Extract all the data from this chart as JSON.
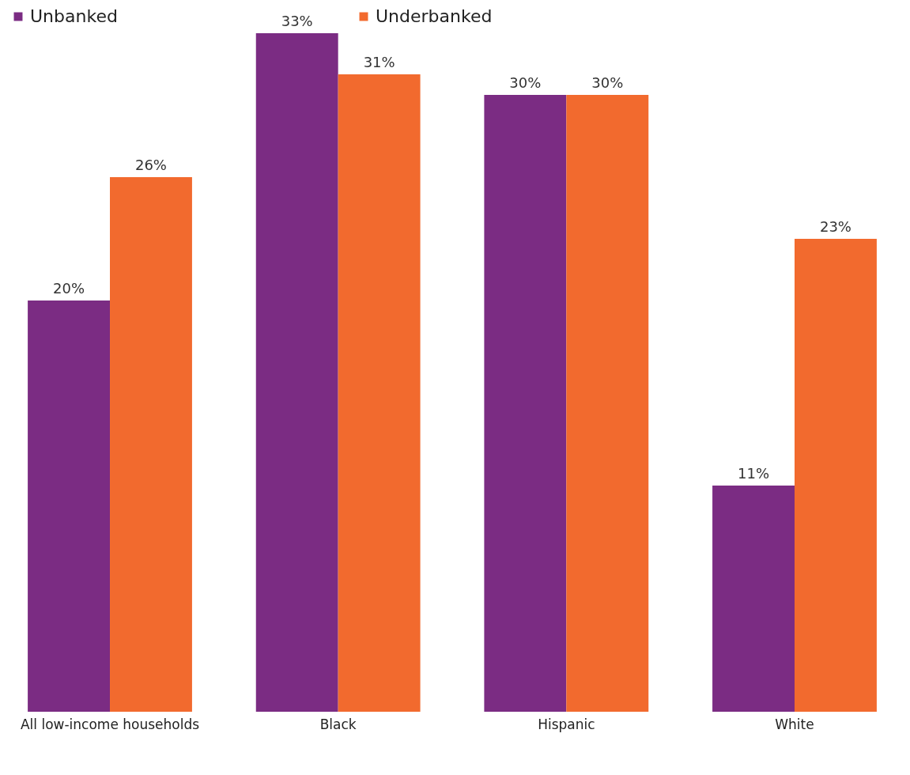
{
  "chart_data": {
    "type": "bar",
    "categories": [
      "All low-income households",
      "Black",
      "Hispanic",
      "White"
    ],
    "series": [
      {
        "name": "Unbanked",
        "color": "#7b2c83",
        "values": [
          20,
          33,
          30,
          11
        ],
        "value_labels": [
          "20%",
          "33%",
          "30%",
          "11%"
        ]
      },
      {
        "name": "Underbanked",
        "color": "#f26a2e",
        "values": [
          26,
          31,
          30,
          23
        ],
        "value_labels": [
          "26%",
          "31%",
          "30%",
          "23%"
        ]
      }
    ],
    "legend": "top"
  }
}
